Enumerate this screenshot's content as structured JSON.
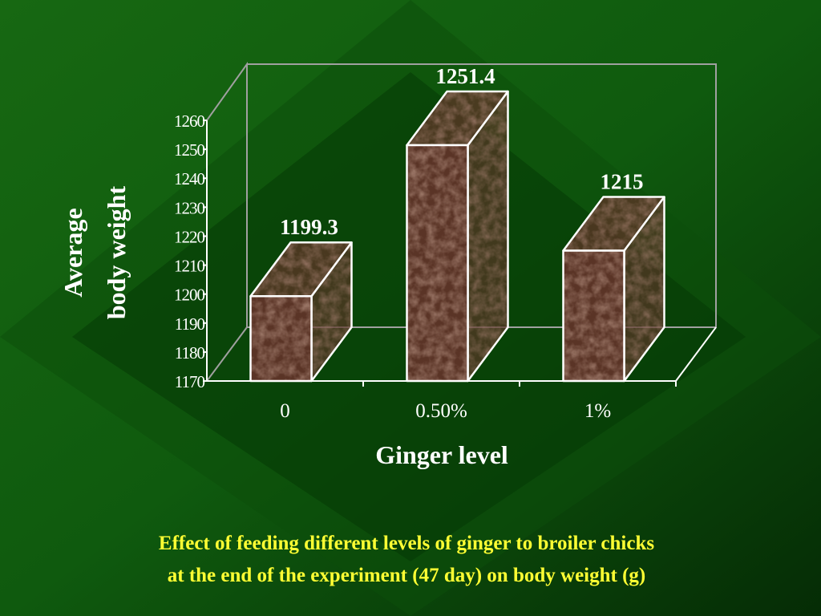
{
  "chart_data": {
    "type": "bar",
    "style": "3d-column",
    "categories": [
      "0",
      "0.50%",
      "1%"
    ],
    "values": [
      1199.3,
      1251.4,
      1215
    ],
    "data_labels": [
      "1199.3",
      "1251.4",
      "1215"
    ],
    "xlabel": "Ginger level",
    "ylabel_lines": [
      "Average",
      "body weight"
    ],
    "ylim": [
      1170,
      1260
    ],
    "yticks": [
      1170,
      1180,
      1190,
      1200,
      1210,
      1220,
      1230,
      1240,
      1250,
      1260
    ],
    "grid": false,
    "legend": "none",
    "colors": {
      "bar": "#5a3426",
      "outline": "#ffffff",
      "axis": "#ffffff",
      "wall": "#a0a0a0"
    }
  },
  "caption": {
    "line1": "Effect of feeding different levels of ginger to broiler chicks",
    "line2": "at the end of the experiment (47 day) on body weight (g)",
    "color": "#ffff33"
  },
  "background": {
    "primary": "#1a6a12",
    "dark": "#022802"
  }
}
